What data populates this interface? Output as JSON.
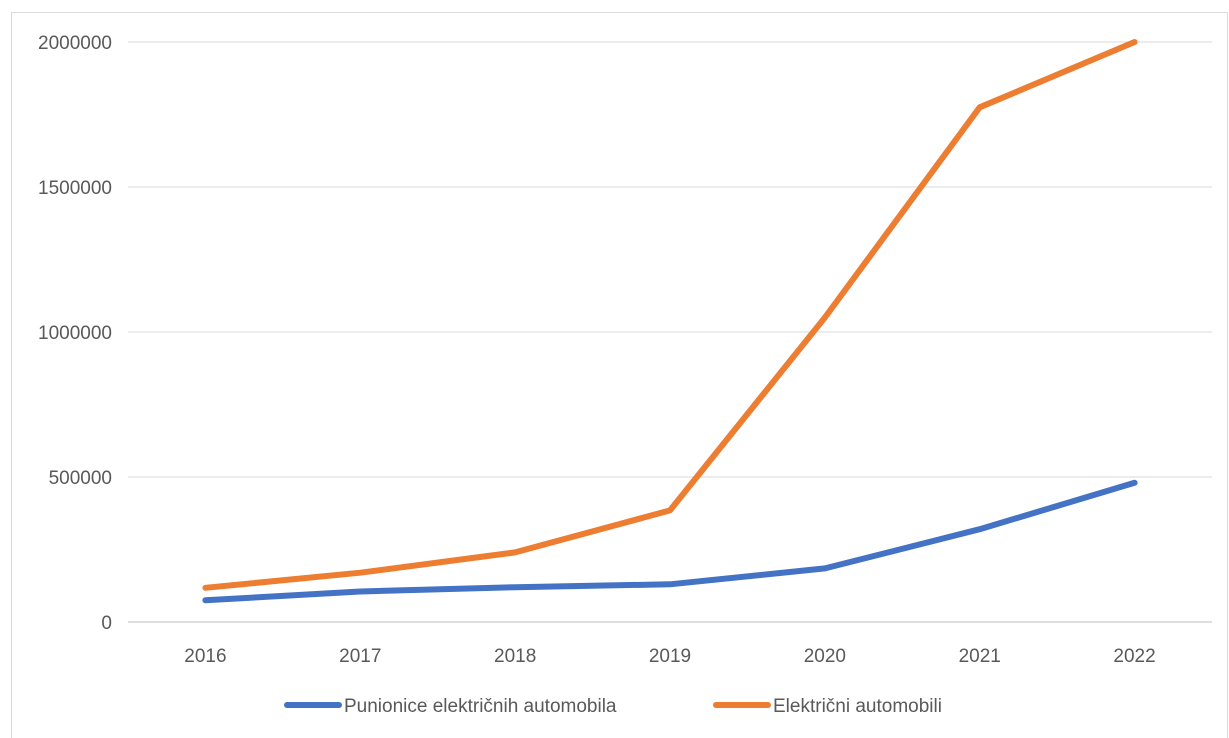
{
  "chart_data": {
    "type": "line",
    "title": "",
    "xlabel": "",
    "ylabel": "",
    "categories": [
      "2016",
      "2017",
      "2018",
      "2019",
      "2020",
      "2021",
      "2022"
    ],
    "series": [
      {
        "name": "Punionice električnih automobila",
        "color": "#4472c4",
        "values": [
          75000,
          105000,
          120000,
          130000,
          185000,
          320000,
          480000
        ]
      },
      {
        "name": "Električni automobili",
        "color": "#ed7d31",
        "values": [
          118000,
          170000,
          240000,
          385000,
          1050000,
          1775000,
          2000000
        ]
      }
    ],
    "yticks": [
      "0",
      "500000",
      "1000000",
      "1500000",
      "2000000"
    ],
    "ylim": [
      0,
      2000000
    ],
    "grid": true,
    "legend": "bottom"
  }
}
